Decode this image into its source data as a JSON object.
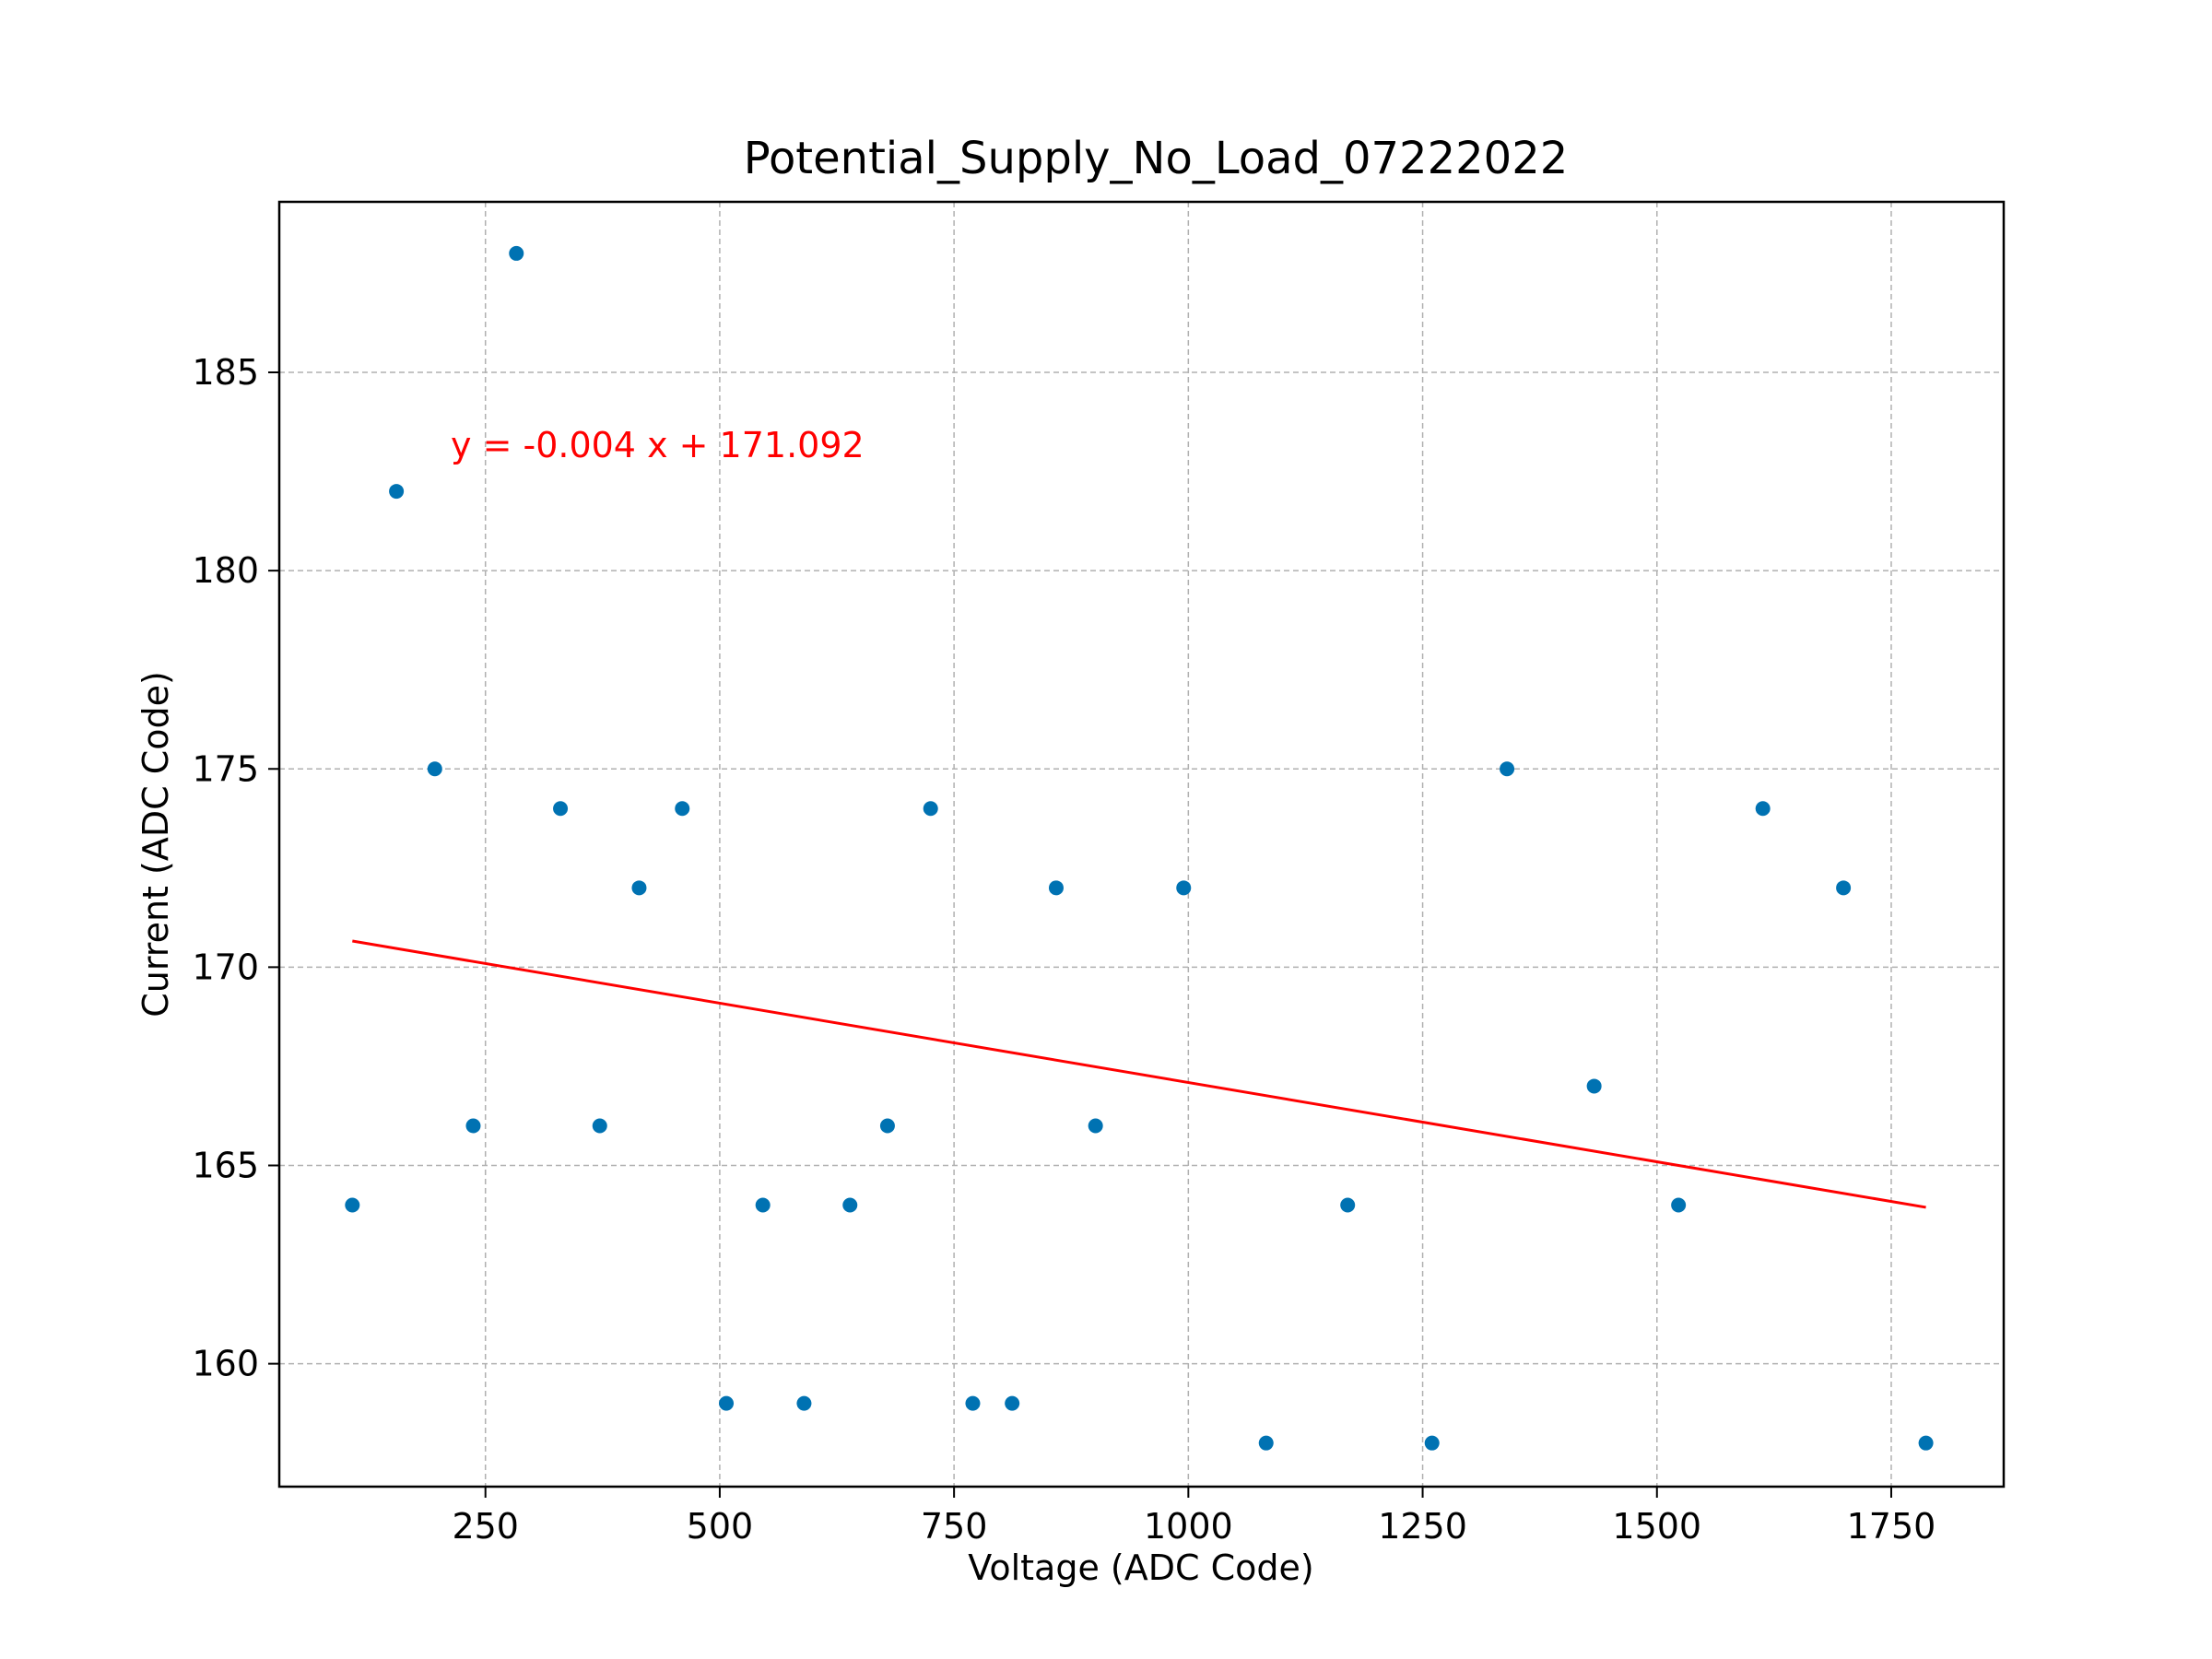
{
  "chart_data": {
    "type": "scatter",
    "title": "Potential_Supply_No_Load_07222022",
    "xlabel": "Voltage (ADC Code)",
    "ylabel": "Current (ADC Code)",
    "xlim": [
      30,
      1870
    ],
    "ylim": [
      156.9,
      189.3
    ],
    "xticks": [
      250,
      500,
      750,
      1000,
      1250,
      1500,
      1750
    ],
    "yticks": [
      160,
      165,
      170,
      175,
      180,
      185
    ],
    "grid": true,
    "colors": {
      "points": "#0072b2",
      "fit": "#ff0000",
      "grid": "#b0b0b0"
    },
    "series": [
      {
        "points": [
          [
            108,
            164
          ],
          [
            155,
            182
          ],
          [
            196,
            175
          ],
          [
            237,
            166
          ],
          [
            283,
            188
          ],
          [
            330,
            174
          ],
          [
            372,
            166
          ],
          [
            414,
            172
          ],
          [
            460,
            174
          ],
          [
            507,
            159
          ],
          [
            546,
            164
          ],
          [
            590,
            159
          ],
          [
            639,
            164
          ],
          [
            679,
            166
          ],
          [
            725,
            174
          ],
          [
            770,
            159
          ],
          [
            812,
            159
          ],
          [
            859,
            172
          ],
          [
            901,
            166
          ],
          [
            995,
            172
          ],
          [
            1083,
            158
          ],
          [
            1170,
            164
          ],
          [
            1260,
            158
          ],
          [
            1340,
            175
          ],
          [
            1433,
            167
          ],
          [
            1523,
            164
          ],
          [
            1613,
            174
          ],
          [
            1699,
            172
          ],
          [
            1787,
            158
          ]
        ]
      }
    ],
    "fit_line": {
      "slope": -0.004,
      "intercept": 171.092,
      "x_range": [
        108,
        1787
      ],
      "label": "y = -0.004 x + 171.092"
    }
  }
}
